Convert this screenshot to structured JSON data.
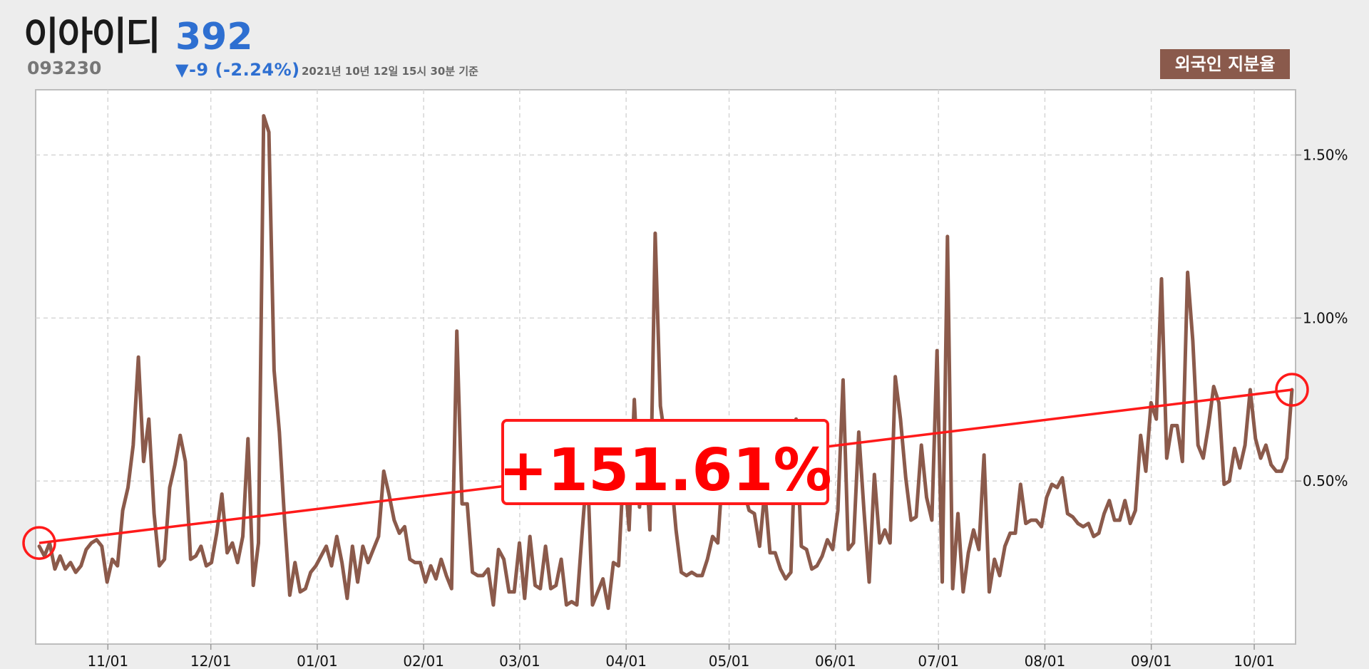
{
  "header": {
    "stock_name": "이아이디",
    "price": "392",
    "code": "093230",
    "change": "▼-9 (-2.24%)",
    "timestamp": "2021년 10년 12일 15시 30분 기준",
    "metric_badge": "외국인 지분율"
  },
  "colors": {
    "line": "#8b5a4b",
    "trend": "#ff1a1a",
    "price_blue": "#2e6fd1",
    "badge_bg": "#8a5a4c"
  },
  "chart_data": {
    "type": "line",
    "title": "",
    "xlabel": "",
    "ylabel": "",
    "y_unit": "%",
    "ylim": [
      0.0,
      1.7
    ],
    "y_ticks": [
      "1.50%",
      "1.00%",
      "0.50%"
    ],
    "y_tick_values": [
      1.5,
      1.0,
      0.5
    ],
    "x_range": [
      "2020-10-12",
      "2021-10-12"
    ],
    "x_ticks": [
      "11/01",
      "12/01",
      "01/01",
      "02/01",
      "03/01",
      "04/01",
      "05/01",
      "06/01",
      "07/01",
      "08/01",
      "09/01",
      "10/01"
    ],
    "x_tick_dates": [
      "2020-11-01",
      "2020-12-01",
      "2021-01-01",
      "2021-02-01",
      "2021-03-01",
      "2021-04-01",
      "2021-05-01",
      "2021-06-01",
      "2021-07-01",
      "2021-08-01",
      "2021-09-01",
      "2021-10-01"
    ],
    "grid": true,
    "series": [
      {
        "values": [
          0.3,
          0.27,
          0.31,
          0.23,
          0.27,
          0.23,
          0.25,
          0.22,
          0.24,
          0.29,
          0.31,
          0.32,
          0.3,
          0.19,
          0.26,
          0.24,
          0.41,
          0.48,
          0.61,
          0.88,
          0.56,
          0.69,
          0.4,
          0.24,
          0.26,
          0.48,
          0.55,
          0.64,
          0.56,
          0.26,
          0.27,
          0.3,
          0.24,
          0.25,
          0.34,
          0.46,
          0.28,
          0.31,
          0.25,
          0.33,
          0.63,
          0.18,
          0.31,
          1.62,
          1.57,
          0.84,
          0.65,
          0.38,
          0.15,
          0.25,
          0.16,
          0.17,
          0.22,
          0.24,
          0.27,
          0.3,
          0.24,
          0.33,
          0.25,
          0.14,
          0.3,
          0.19,
          0.3,
          0.25,
          0.29,
          0.33,
          0.53,
          0.46,
          0.38,
          0.34,
          0.36,
          0.26,
          0.25,
          0.25,
          0.19,
          0.24,
          0.2,
          0.26,
          0.21,
          0.17,
          0.96,
          0.43,
          0.43,
          0.22,
          0.21,
          0.21,
          0.23,
          0.12,
          0.29,
          0.26,
          0.16,
          0.16,
          0.31,
          0.14,
          0.33,
          0.18,
          0.17,
          0.3,
          0.17,
          0.18,
          0.26,
          0.12,
          0.13,
          0.12,
          0.34,
          0.55,
          0.12,
          0.16,
          0.2,
          0.11,
          0.25,
          0.24,
          0.56,
          0.35,
          0.75,
          0.42,
          0.63,
          0.35,
          1.26,
          0.73,
          0.62,
          0.53,
          0.35,
          0.22,
          0.21,
          0.22,
          0.21,
          0.21,
          0.26,
          0.33,
          0.31,
          0.55,
          0.51,
          0.53,
          0.49,
          0.47,
          0.41,
          0.4,
          0.3,
          0.47,
          0.28,
          0.28,
          0.23,
          0.2,
          0.22,
          0.69,
          0.3,
          0.29,
          0.23,
          0.24,
          0.27,
          0.32,
          0.29,
          0.41,
          0.81,
          0.29,
          0.31,
          0.65,
          0.41,
          0.19,
          0.52,
          0.31,
          0.35,
          0.31,
          0.82,
          0.69,
          0.51,
          0.38,
          0.39,
          0.61,
          0.45,
          0.38,
          0.9,
          0.19,
          1.25,
          0.17,
          0.4,
          0.16,
          0.28,
          0.35,
          0.29,
          0.58,
          0.16,
          0.26,
          0.21,
          0.3,
          0.34,
          0.34,
          0.49,
          0.37,
          0.38,
          0.38,
          0.36,
          0.45,
          0.49,
          0.48,
          0.51,
          0.4,
          0.39,
          0.37,
          0.36,
          0.37,
          0.33,
          0.34,
          0.4,
          0.44,
          0.38,
          0.38,
          0.44,
          0.37,
          0.41,
          0.64,
          0.53,
          0.74,
          0.69,
          1.12,
          0.57,
          0.67,
          0.67,
          0.56,
          1.14,
          0.93,
          0.61,
          0.57,
          0.67,
          0.79,
          0.74,
          0.49,
          0.5,
          0.6,
          0.54,
          0.61,
          0.78,
          0.63,
          0.57,
          0.61,
          0.55,
          0.53,
          0.53,
          0.57,
          0.78
        ]
      }
    ],
    "trend": {
      "start": 0.31,
      "end": 0.78
    },
    "annotation": "+151.61%"
  }
}
